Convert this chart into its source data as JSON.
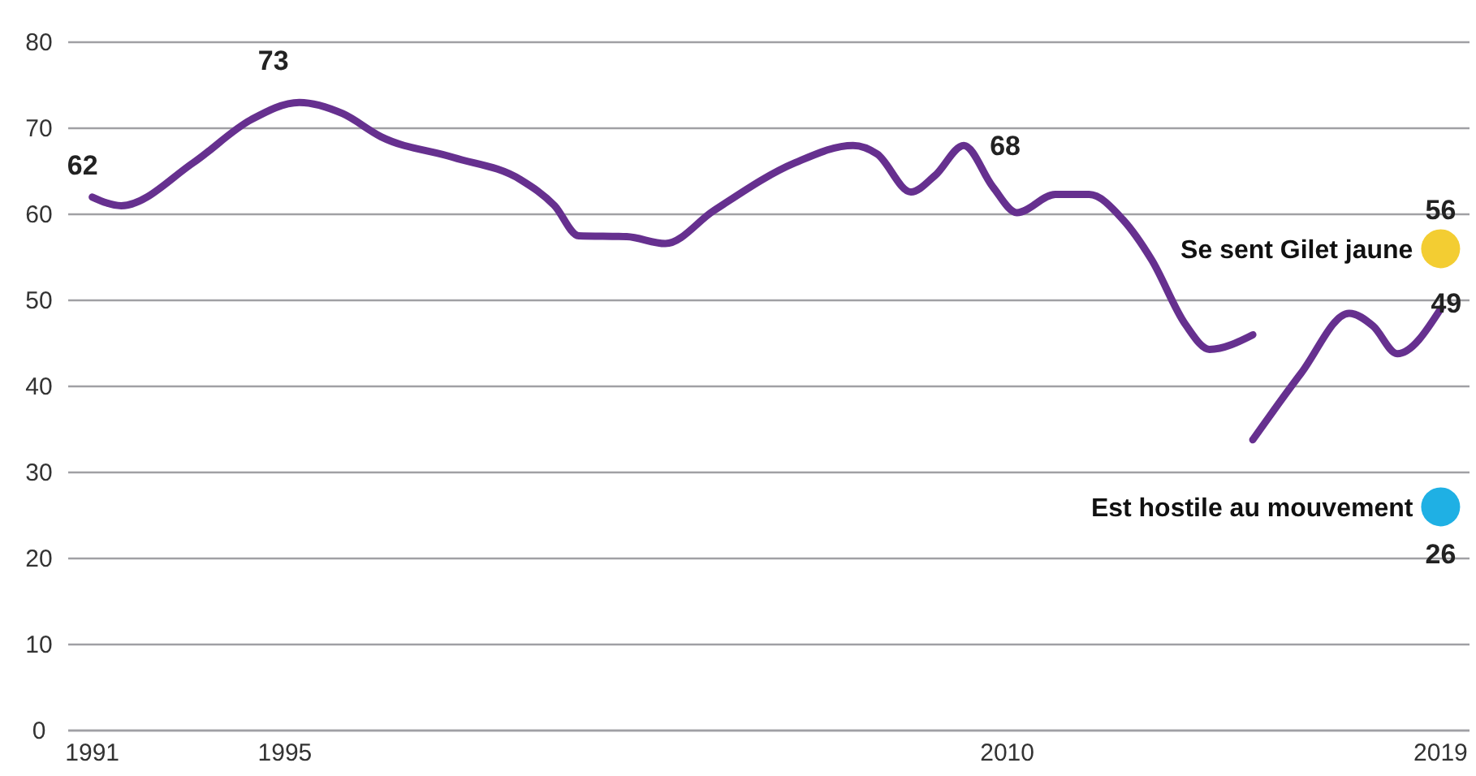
{
  "chart_data": {
    "type": "line",
    "xlim": [
      1990.5,
      2019.6
    ],
    "xticks": [
      1991,
      1995,
      2010,
      2019
    ],
    "ylim": [
      0,
      80
    ],
    "yticks": [
      0,
      10,
      20,
      30,
      40,
      50,
      60,
      70,
      80
    ],
    "grid": "y",
    "line_style": "solid",
    "series": [
      {
        "color": "#66308f",
        "x": [
          1991,
          1991.6,
          1993.1,
          1994.3,
          1995.3,
          1996.2,
          1997,
          1998.5,
          1999.9,
          2000.6,
          2001.1,
          2002.1,
          2002.9,
          2003.9,
          2005.6,
          2006.8,
          2007.3,
          2008,
          2008.5,
          2009.1,
          2009.7,
          2010.2,
          2011,
          2011.7,
          2012.4,
          2013,
          2013.7,
          2014.2,
          2015.1
        ],
        "values": [
          62,
          61,
          66,
          71,
          73,
          71.7,
          69,
          66.6,
          64,
          61,
          57.5,
          57.4,
          56.6,
          60.4,
          66,
          68,
          67,
          62.6,
          64.5,
          68,
          63.2,
          60.2,
          62.3,
          62.3,
          59.4,
          54.7,
          47.2,
          44.3,
          46
        ],
        "value_labels": [
          "62",
          null,
          null,
          null,
          "73",
          null,
          null,
          null,
          null,
          null,
          null,
          null,
          null,
          null,
          null,
          null,
          null,
          null,
          null,
          "68",
          null,
          null,
          null,
          null,
          null,
          null,
          null,
          null,
          null
        ]
      },
      {
        "color": "#66308f",
        "x": [
          2015.1,
          2016.1,
          2017.1,
          2017.6,
          2018.1,
          2019
        ],
        "values": [
          33.8,
          41.5,
          48.5,
          47,
          43.8,
          49
        ],
        "value_labels": [
          null,
          null,
          null,
          null,
          null,
          "49"
        ]
      },
      {
        "type": "scatter",
        "name": "Se sent Gilet jaune",
        "color": "#f3cd32",
        "marker": "circle",
        "x": [
          2019
        ],
        "values": [
          56
        ],
        "value_labels": [
          "56"
        ]
      },
      {
        "type": "scatter",
        "name": "Est hostile au mouvement",
        "color": "#1fb0e4",
        "marker": "circle",
        "x": [
          2019
        ],
        "values": [
          26
        ],
        "value_labels": [
          "26"
        ]
      }
    ]
  }
}
